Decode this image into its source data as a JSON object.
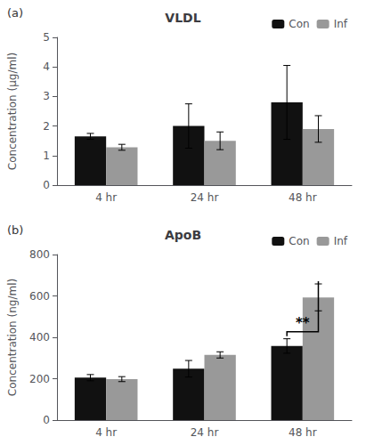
{
  "chart_data": [
    {
      "type": "bar",
      "title": "VLDL",
      "categories": [
        "4 hr",
        "24 hr",
        "48 hr"
      ],
      "series": [
        {
          "name": "Con",
          "color": "#111111",
          "values": [
            1.65,
            2.0,
            2.8
          ],
          "errors": [
            0.1,
            0.75,
            1.25
          ]
        },
        {
          "name": "Inf",
          "color": "#999999",
          "values": [
            1.28,
            1.5,
            1.9
          ],
          "errors": [
            0.1,
            0.3,
            0.45
          ]
        }
      ],
      "ylabel": "Concentration (μg/ml)",
      "ylim": [
        0,
        5
      ],
      "yticks": [
        0,
        1,
        2,
        3,
        4,
        5
      ],
      "grid": false,
      "legend": "upper right",
      "annotations": [
        {
          "text": "(a)"
        }
      ]
    },
    {
      "type": "bar",
      "title": "ApoB",
      "categories": [
        "4 hr",
        "24 hr",
        "48 hr"
      ],
      "series": [
        {
          "name": "Con",
          "color": "#111111",
          "values": [
            205,
            248,
            358
          ],
          "errors": [
            15,
            40,
            35
          ]
        },
        {
          "name": "Inf",
          "color": "#999999",
          "values": [
            198,
            315,
            593
          ],
          "errors": [
            12,
            15,
            65
          ]
        }
      ],
      "ylabel": "Concentration (ng/ml)",
      "ylim": [
        0,
        800
      ],
      "yticks": [
        0,
        200,
        400,
        600,
        800
      ],
      "grid": false,
      "legend": "upper right",
      "annotations": [
        {
          "text": "(b)"
        },
        {
          "text": "**",
          "x": "48 hr"
        }
      ]
    }
  ]
}
